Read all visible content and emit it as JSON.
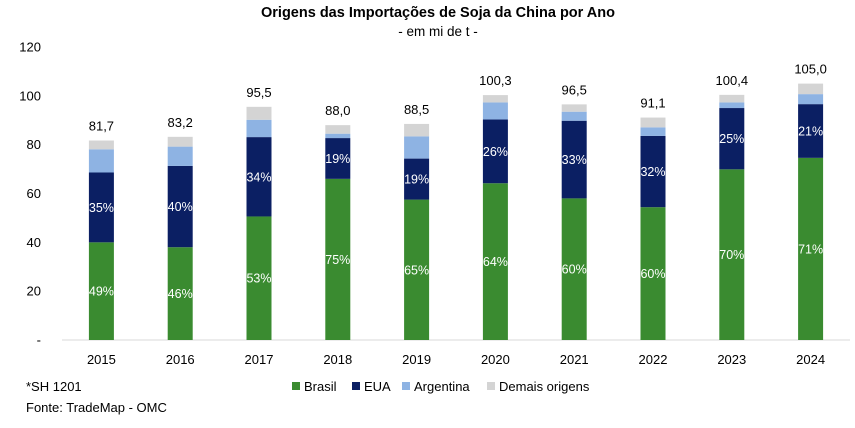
{
  "chart_data": {
    "type": "bar",
    "stacked": true,
    "title": "Origens das Importações de Soja da China por Ano",
    "subtitle": "- em mi de t -",
    "xlabel": "",
    "ylabel": "",
    "ylim": [
      0,
      120
    ],
    "yticks": [
      {
        "value": 0,
        "label": "-"
      },
      {
        "value": 20,
        "label": "20"
      },
      {
        "value": 40,
        "label": "40"
      },
      {
        "value": 60,
        "label": "60"
      },
      {
        "value": 80,
        "label": "80"
      },
      {
        "value": 100,
        "label": "100"
      },
      {
        "value": 120,
        "label": "120"
      }
    ],
    "categories": [
      "2015",
      "2016",
      "2017",
      "2018",
      "2019",
      "2020",
      "2021",
      "2022",
      "2023",
      "2024"
    ],
    "totals": [
      81.7,
      83.2,
      95.5,
      88.0,
      88.5,
      100.3,
      96.5,
      91.1,
      100.4,
      105.0
    ],
    "total_labels": [
      "81,7",
      "83,2",
      "95,5",
      "88,0",
      "88,5",
      "100,3",
      "96,5",
      "91,1",
      "100,4",
      "105,0"
    ],
    "series": [
      {
        "name": "Brasil",
        "color": "#3a8b30",
        "values": [
          40.0,
          38.0,
          50.6,
          66.0,
          57.5,
          64.2,
          58.0,
          54.4,
          69.9,
          74.6
        ],
        "labels": [
          "49%",
          "46%",
          "53%",
          "75%",
          "65%",
          "64%",
          "60%",
          "60%",
          "70%",
          "71%"
        ]
      },
      {
        "name": "EUA",
        "color": "#0b1f63",
        "values": [
          28.6,
          33.3,
          32.5,
          16.7,
          16.8,
          26.1,
          31.8,
          29.2,
          25.1,
          22.0
        ],
        "labels": [
          "35%",
          "40%",
          "34%",
          "19%",
          "19%",
          "26%",
          "33%",
          "32%",
          "25%",
          "21%"
        ]
      },
      {
        "name": "Argentina",
        "color": "#8eb3e3",
        "values": [
          9.5,
          7.9,
          7.1,
          1.8,
          9.1,
          7.0,
          3.7,
          3.5,
          2.3,
          4.1
        ],
        "labels": [
          "",
          "",
          "",
          "",
          "",
          "",
          "",
          "",
          "",
          ""
        ]
      },
      {
        "name": "Demais origens",
        "color": "#d4d4d4",
        "values": [
          3.6,
          4.0,
          5.3,
          3.5,
          5.1,
          3.0,
          3.0,
          4.0,
          3.1,
          4.3
        ],
        "labels": [
          "",
          "",
          "",
          "",
          "",
          "",
          "",
          "",
          "",
          ""
        ]
      }
    ],
    "legend_position": "bottom",
    "grid": false
  },
  "footnotes": {
    "note": "*SH 1201",
    "source": "Fonte: TradeMap - OMC"
  }
}
